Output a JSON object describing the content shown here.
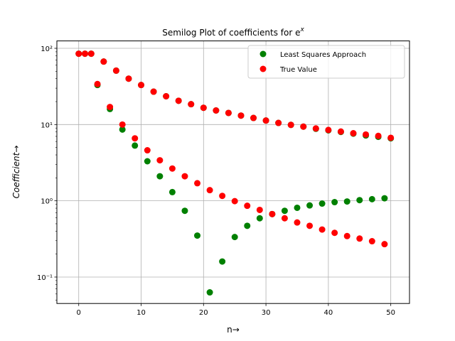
{
  "chart_data": {
    "type": "scatter",
    "title": "Semilog Plot of coefficients for e",
    "title_superscript": "x",
    "xlabel": "n→",
    "ylabel": "Coefficient→",
    "xlim": [
      -3.5,
      53
    ],
    "ylim": [
      0.045,
      125
    ],
    "yscale": "log",
    "grid": true,
    "legend_position": "top-right",
    "x_ticks": [
      0,
      10,
      20,
      30,
      40,
      50
    ],
    "x_tick_labels": [
      "0",
      "10",
      "20",
      "30",
      "40",
      "50"
    ],
    "y_ticks": [
      0.1,
      1,
      10,
      100
    ],
    "y_tick_labels": [
      "10⁻¹",
      "10⁰",
      "10¹",
      "10²"
    ],
    "series": [
      {
        "name": "Least Squares Approach",
        "color": "#008000",
        "points": [
          [
            0,
            85
          ],
          [
            1,
            85
          ],
          [
            2,
            85
          ],
          [
            3,
            33
          ],
          [
            5,
            16
          ],
          [
            7,
            8.6
          ],
          [
            9,
            5.3
          ],
          [
            11,
            3.3
          ],
          [
            13,
            2.1
          ],
          [
            15,
            1.3
          ],
          [
            17,
            0.74
          ],
          [
            19,
            0.35
          ],
          [
            21,
            0.063
          ],
          [
            23,
            0.16
          ],
          [
            25,
            0.335
          ],
          [
            27,
            0.47
          ],
          [
            29,
            0.59
          ],
          [
            31,
            0.67
          ],
          [
            33,
            0.74
          ],
          [
            35,
            0.81
          ],
          [
            37,
            0.87
          ],
          [
            39,
            0.92
          ],
          [
            41,
            0.96
          ],
          [
            43,
            0.98
          ],
          [
            45,
            1.02
          ],
          [
            47,
            1.05
          ],
          [
            49,
            1.08
          ],
          [
            4,
            67
          ],
          [
            6,
            51
          ],
          [
            8,
            40
          ],
          [
            10,
            33
          ],
          [
            12,
            27
          ],
          [
            14,
            23.5
          ],
          [
            16,
            20.5
          ],
          [
            18,
            18.5
          ],
          [
            20,
            16.6
          ],
          [
            22,
            15.3
          ],
          [
            24,
            14.2
          ],
          [
            26,
            13.1
          ],
          [
            28,
            12.2
          ],
          [
            30,
            11.3
          ],
          [
            32,
            10.5
          ],
          [
            34,
            9.9
          ],
          [
            36,
            9.4
          ],
          [
            38,
            8.8
          ],
          [
            40,
            8.4
          ],
          [
            42,
            8.0
          ],
          [
            44,
            7.6
          ],
          [
            46,
            7.2
          ],
          [
            48,
            6.9
          ],
          [
            50,
            6.6
          ]
        ]
      },
      {
        "name": "True Value",
        "color": "#ff0000",
        "points": [
          [
            0,
            85
          ],
          [
            1,
            85
          ],
          [
            2,
            85
          ],
          [
            4,
            67
          ],
          [
            6,
            51
          ],
          [
            8,
            40
          ],
          [
            10,
            33
          ],
          [
            12,
            27
          ],
          [
            14,
            23.5
          ],
          [
            16,
            20.5
          ],
          [
            18,
            18.5
          ],
          [
            20,
            16.6
          ],
          [
            22,
            15.3
          ],
          [
            24,
            14.2
          ],
          [
            26,
            13.1
          ],
          [
            28,
            12.2
          ],
          [
            30,
            11.3
          ],
          [
            32,
            10.5
          ],
          [
            34,
            9.9
          ],
          [
            36,
            9.4
          ],
          [
            38,
            8.9
          ],
          [
            40,
            8.5
          ],
          [
            42,
            8.1
          ],
          [
            44,
            7.7
          ],
          [
            46,
            7.4
          ],
          [
            48,
            7.1
          ],
          [
            50,
            6.7
          ],
          [
            3,
            34
          ],
          [
            5,
            17
          ],
          [
            7,
            10
          ],
          [
            9,
            6.6
          ],
          [
            11,
            4.6
          ],
          [
            13,
            3.4
          ],
          [
            15,
            2.65
          ],
          [
            17,
            2.1
          ],
          [
            19,
            1.7
          ],
          [
            21,
            1.38
          ],
          [
            23,
            1.16
          ],
          [
            25,
            0.99
          ],
          [
            27,
            0.86
          ],
          [
            29,
            0.76
          ],
          [
            31,
            0.67
          ],
          [
            33,
            0.59
          ],
          [
            35,
            0.52
          ],
          [
            37,
            0.47
          ],
          [
            39,
            0.42
          ],
          [
            41,
            0.38
          ],
          [
            43,
            0.345
          ],
          [
            45,
            0.32
          ],
          [
            47,
            0.295
          ],
          [
            49,
            0.27
          ]
        ]
      }
    ]
  }
}
